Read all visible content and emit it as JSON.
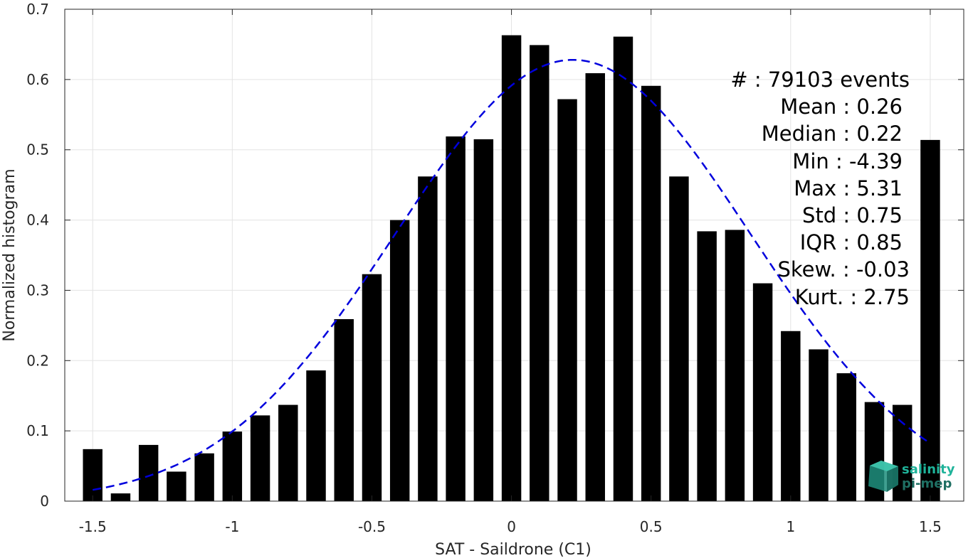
{
  "chart_data": {
    "type": "bar",
    "xlabel": "SAT - Saildrone (C1)",
    "ylabel": "Normalized histogram",
    "xlim": [
      -1.6,
      1.62
    ],
    "ylim": [
      0,
      0.7
    ],
    "grid": true,
    "x_ticks": [
      -1.5,
      -1,
      -0.5,
      0,
      0.5,
      1,
      1.5
    ],
    "x_tick_labels": [
      "-1.5",
      "-1",
      "-0.5",
      "0",
      "0.5",
      "1",
      "1.5"
    ],
    "y_ticks": [
      0,
      0.1,
      0.2,
      0.3,
      0.4,
      0.5,
      0.6,
      0.7
    ],
    "y_tick_labels": [
      "0",
      "0.1",
      "0.2",
      "0.3",
      "0.4",
      "0.5",
      "0.6",
      "0.7"
    ],
    "bar_width": 0.07,
    "bar_color": "#000000",
    "bins": [
      -1.5,
      -1.4,
      -1.3,
      -1.2,
      -1.1,
      -1.0,
      -0.9,
      -0.8,
      -0.7,
      -0.6,
      -0.5,
      -0.4,
      -0.3,
      -0.2,
      -0.1,
      0.0,
      0.1,
      0.2,
      0.3,
      0.4,
      0.5,
      0.6,
      0.7,
      0.8,
      0.9,
      1.0,
      1.1,
      1.2,
      1.3,
      1.4,
      1.5
    ],
    "values": [
      0.074,
      0.011,
      0.08,
      0.042,
      0.068,
      0.099,
      0.122,
      0.137,
      0.186,
      0.259,
      0.323,
      0.4,
      0.462,
      0.519,
      0.515,
      0.663,
      0.649,
      0.572,
      0.609,
      0.661,
      0.591,
      0.462,
      0.384,
      0.386,
      0.31,
      0.242,
      0.216,
      0.182,
      0.141,
      0.137,
      0.514
    ],
    "fit_curve": {
      "style": "dashed",
      "color": "#0000dd",
      "mean": 0.22,
      "std": 0.635,
      "peak": 0.628,
      "x_range": [
        -1.5,
        1.5
      ]
    },
    "stats": [
      {
        "label": "#  : 79103 events"
      },
      {
        "label": "Mean : 0.26"
      },
      {
        "label": "Median : 0.22"
      },
      {
        "label": "Min : -4.39"
      },
      {
        "label": "Max : 5.31"
      },
      {
        "label": "Std : 0.75"
      },
      {
        "label": "IQR : 0.85"
      },
      {
        "label": "Skew. : -0.03"
      },
      {
        "label": "Kurt. : 2.75"
      }
    ]
  },
  "logo": {
    "line1": "salinity",
    "line2": "pi-mep",
    "color1": "#1fb39a",
    "color2": "#1f6f63"
  }
}
